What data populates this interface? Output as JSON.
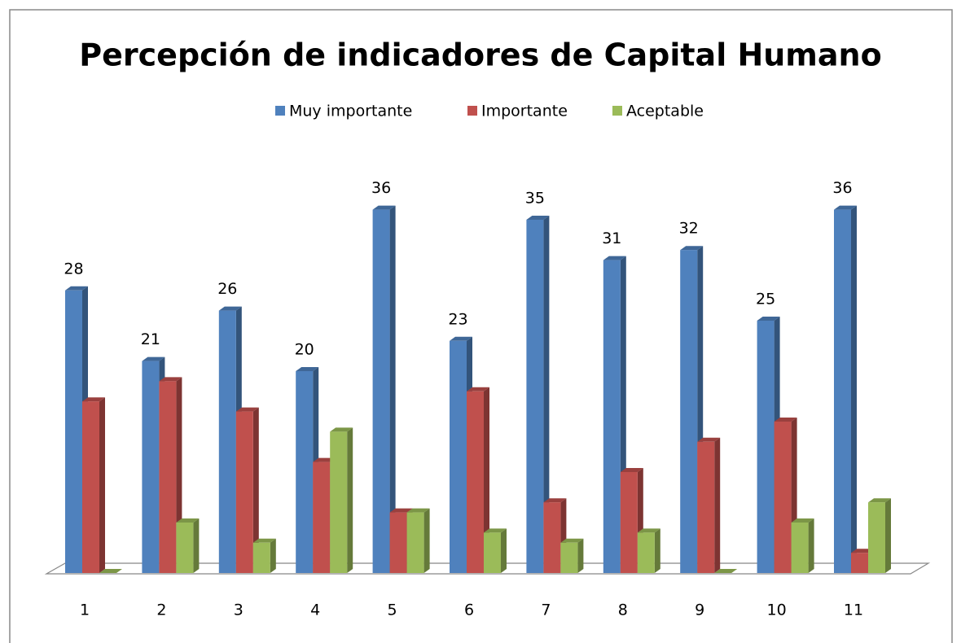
{
  "chart_data": {
    "type": "bar3d",
    "title": "Percepción de indicadores de Capital Humano",
    "categories": [
      "1",
      "2",
      "3",
      "4",
      "5",
      "6",
      "7",
      "8",
      "9",
      "10",
      "11"
    ],
    "series": [
      {
        "name": "Muy importante",
        "color": "#4f81bd",
        "show_labels": true,
        "values": [
          28,
          21,
          26,
          20,
          36,
          23,
          35,
          31,
          32,
          25,
          36
        ]
      },
      {
        "name": "Importante",
        "color": "#c0504d",
        "show_labels": false,
        "values": [
          17,
          19,
          16,
          11,
          6,
          18,
          7,
          10,
          13,
          15,
          2
        ]
      },
      {
        "name": "Aceptable",
        "color": "#9bbb59",
        "show_labels": false,
        "values": [
          0,
          5,
          3,
          14,
          6,
          4,
          3,
          4,
          0,
          5,
          7
        ]
      }
    ],
    "legend": "top"
  }
}
